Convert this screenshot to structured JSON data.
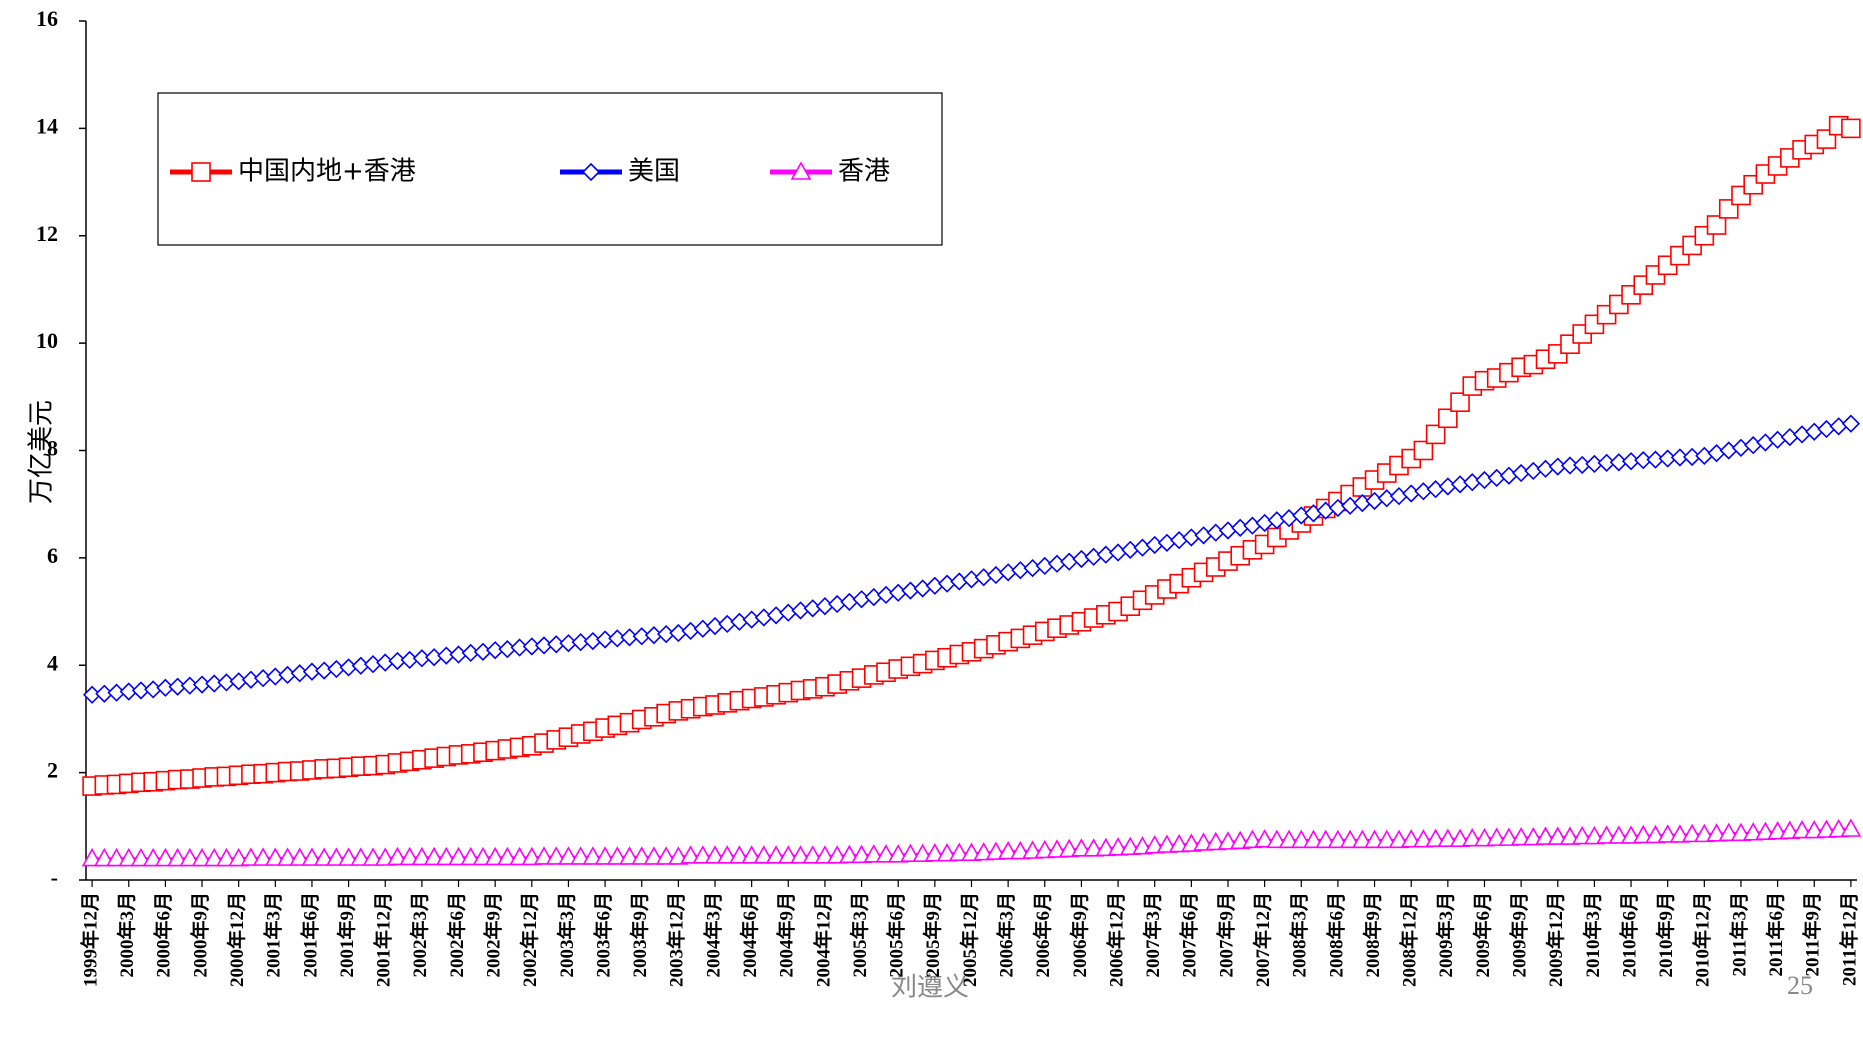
{
  "chart_data": {
    "type": "line",
    "y_label": "万亿美元",
    "annotations": [
      "刘遵义",
      "25"
    ],
    "categories": [
      "1999年12月",
      null,
      null,
      "2000年3月",
      null,
      null,
      "2000年6月",
      null,
      null,
      "2000年9月",
      null,
      null,
      "2000年12月",
      null,
      null,
      "2001年3月",
      null,
      null,
      "2001年6月",
      null,
      null,
      "2001年9月",
      null,
      null,
      "2001年12月",
      null,
      null,
      "2002年3月",
      null,
      null,
      "2002年6月",
      null,
      null,
      "2002年9月",
      null,
      null,
      "2002年12月",
      null,
      null,
      "2003年3月",
      null,
      null,
      "2003年6月",
      null,
      null,
      "2003年9月",
      null,
      null,
      "2003年12月",
      null,
      null,
      "2004年3月",
      null,
      null,
      "2004年6月",
      null,
      null,
      "2004年9月",
      null,
      null,
      "2004年12月",
      null,
      null,
      "2005年3月",
      null,
      null,
      "2005年6月",
      null,
      null,
      "2005年9月",
      null,
      null,
      "2005年12月",
      null,
      null,
      "2006年3月",
      null,
      null,
      "2006年6月",
      null,
      null,
      "2006年9月",
      null,
      null,
      "2006年12月",
      null,
      null,
      "2007年3月",
      null,
      null,
      "2007年6月",
      null,
      null,
      "2007年9月",
      null,
      null,
      "2007年12月",
      null,
      null,
      "2008年3月",
      null,
      null,
      "2008年6月",
      null,
      null,
      "2008年9月",
      null,
      null,
      "2008年12月",
      null,
      null,
      "2009年3月",
      null,
      null,
      "2009年6月",
      null,
      null,
      "2009年9月",
      null,
      null,
      "2009年12月",
      null,
      null,
      "2010年3月",
      null,
      null,
      "2010年6月",
      null,
      null,
      "2010年9月",
      null,
      null,
      "2010年12月",
      null,
      null,
      "2011年3月",
      null,
      null,
      "2011年6月",
      null,
      null,
      "2011年9月",
      null,
      null,
      "2011年12月"
    ],
    "series": [
      {
        "name": "中国内地+香港",
        "color": "#ff0000",
        "marker": "square",
        "values": [
          1.75,
          1.77,
          1.78,
          1.8,
          1.82,
          1.83,
          1.85,
          1.87,
          1.88,
          1.9,
          1.92,
          1.93,
          1.95,
          1.97,
          1.98,
          2.0,
          2.02,
          2.03,
          2.05,
          2.07,
          2.08,
          2.1,
          2.12,
          2.13,
          2.15,
          2.18,
          2.21,
          2.24,
          2.27,
          2.3,
          2.33,
          2.35,
          2.38,
          2.41,
          2.44,
          2.47,
          2.5,
          2.55,
          2.61,
          2.66,
          2.72,
          2.77,
          2.83,
          2.88,
          2.93,
          2.99,
          3.04,
          3.1,
          3.15,
          3.19,
          3.23,
          3.26,
          3.3,
          3.34,
          3.38,
          3.41,
          3.45,
          3.49,
          3.53,
          3.56,
          3.6,
          3.65,
          3.71,
          3.76,
          3.82,
          3.87,
          3.93,
          3.98,
          4.03,
          4.09,
          4.14,
          4.2,
          4.25,
          4.31,
          4.38,
          4.44,
          4.5,
          4.56,
          4.63,
          4.69,
          4.75,
          4.81,
          4.88,
          4.94,
          5.0,
          5.1,
          5.21,
          5.31,
          5.42,
          5.52,
          5.63,
          5.73,
          5.83,
          5.94,
          6.04,
          6.15,
          6.25,
          6.38,
          6.52,
          6.65,
          6.78,
          6.92,
          7.05,
          7.18,
          7.32,
          7.45,
          7.58,
          7.72,
          7.85,
          8.0,
          8.3,
          8.6,
          8.9,
          9.2,
          9.3,
          9.35,
          9.45,
          9.55,
          9.6,
          9.7,
          9.8,
          9.98,
          10.17,
          10.35,
          10.53,
          10.72,
          10.9,
          11.08,
          11.27,
          11.45,
          11.63,
          11.82,
          12.0,
          12.2,
          12.5,
          12.75,
          12.95,
          13.15,
          13.3,
          13.45,
          13.6,
          13.7,
          13.8,
          14.05,
          14.0
        ]
      },
      {
        "name": "美国",
        "color": "#0000ff",
        "marker": "diamond",
        "values": [
          3.45,
          3.47,
          3.49,
          3.51,
          3.53,
          3.55,
          3.58,
          3.6,
          3.62,
          3.64,
          3.66,
          3.68,
          3.7,
          3.73,
          3.76,
          3.79,
          3.82,
          3.85,
          3.88,
          3.9,
          3.93,
          3.96,
          3.99,
          4.02,
          4.05,
          4.08,
          4.1,
          4.13,
          4.15,
          4.18,
          4.2,
          4.23,
          4.25,
          4.28,
          4.3,
          4.33,
          4.35,
          4.37,
          4.39,
          4.41,
          4.43,
          4.45,
          4.48,
          4.5,
          4.52,
          4.54,
          4.56,
          4.58,
          4.6,
          4.64,
          4.68,
          4.73,
          4.77,
          4.81,
          4.85,
          4.89,
          4.93,
          4.98,
          5.02,
          5.06,
          5.1,
          5.14,
          5.18,
          5.23,
          5.27,
          5.31,
          5.35,
          5.39,
          5.43,
          5.48,
          5.52,
          5.56,
          5.6,
          5.64,
          5.68,
          5.73,
          5.77,
          5.81,
          5.85,
          5.89,
          5.93,
          5.98,
          6.02,
          6.06,
          6.1,
          6.15,
          6.19,
          6.24,
          6.28,
          6.33,
          6.38,
          6.42,
          6.47,
          6.51,
          6.56,
          6.6,
          6.65,
          6.7,
          6.74,
          6.79,
          6.83,
          6.88,
          6.93,
          6.97,
          7.02,
          7.06,
          7.11,
          7.15,
          7.2,
          7.24,
          7.28,
          7.33,
          7.37,
          7.41,
          7.45,
          7.49,
          7.53,
          7.58,
          7.62,
          7.66,
          7.7,
          7.72,
          7.73,
          7.75,
          7.77,
          7.78,
          7.8,
          7.82,
          7.83,
          7.85,
          7.87,
          7.88,
          7.9,
          7.95,
          8.0,
          8.05,
          8.1,
          8.15,
          8.2,
          8.25,
          8.3,
          8.35,
          8.4,
          8.45,
          8.5
        ]
      },
      {
        "name": "香港",
        "color": "#ff00ff",
        "marker": "triangle",
        "values": [
          0.4,
          0.4,
          0.4,
          0.4,
          0.4,
          0.4,
          0.4,
          0.4,
          0.4,
          0.4,
          0.4,
          0.4,
          0.4,
          0.41,
          0.41,
          0.41,
          0.41,
          0.41,
          0.41,
          0.41,
          0.41,
          0.41,
          0.41,
          0.41,
          0.41,
          0.42,
          0.42,
          0.42,
          0.42,
          0.42,
          0.42,
          0.42,
          0.42,
          0.42,
          0.42,
          0.42,
          0.42,
          0.43,
          0.43,
          0.43,
          0.43,
          0.43,
          0.43,
          0.43,
          0.43,
          0.43,
          0.43,
          0.43,
          0.43,
          0.45,
          0.45,
          0.45,
          0.45,
          0.45,
          0.45,
          0.45,
          0.45,
          0.45,
          0.45,
          0.45,
          0.45,
          0.45,
          0.46,
          0.46,
          0.47,
          0.47,
          0.47,
          0.48,
          0.48,
          0.49,
          0.49,
          0.5,
          0.5,
          0.51,
          0.52,
          0.53,
          0.53,
          0.54,
          0.55,
          0.56,
          0.57,
          0.58,
          0.58,
          0.59,
          0.6,
          0.61,
          0.62,
          0.64,
          0.65,
          0.66,
          0.67,
          0.69,
          0.7,
          0.71,
          0.72,
          0.74,
          0.75,
          0.74,
          0.74,
          0.74,
          0.74,
          0.74,
          0.74,
          0.74,
          0.74,
          0.74,
          0.74,
          0.74,
          0.75,
          0.75,
          0.76,
          0.76,
          0.76,
          0.77,
          0.77,
          0.78,
          0.78,
          0.79,
          0.79,
          0.8,
          0.8,
          0.8,
          0.81,
          0.81,
          0.82,
          0.82,
          0.82,
          0.83,
          0.83,
          0.84,
          0.84,
          0.85,
          0.85,
          0.86,
          0.87,
          0.87,
          0.88,
          0.89,
          0.9,
          0.91,
          0.92,
          0.92,
          0.93,
          0.94,
          0.95
        ]
      }
    ],
    "ylim": [
      0,
      16
    ],
    "yticks": [
      {
        "value": 0,
        "label": "-"
      },
      2,
      4,
      6,
      8,
      10,
      12,
      14,
      16
    ],
    "grid": false,
    "legend": "top-left"
  }
}
